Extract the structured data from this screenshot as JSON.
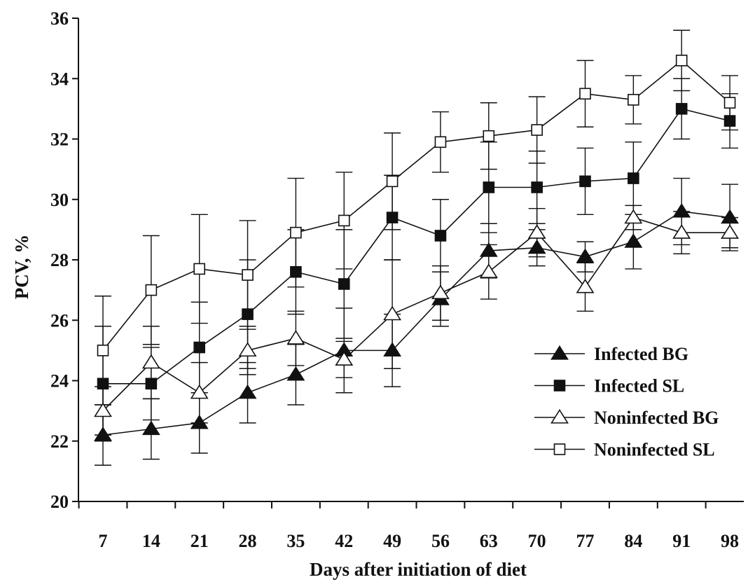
{
  "chart_data": {
    "type": "line",
    "xlabel": "Days after initiation of diet",
    "ylabel": "PCV, %",
    "ylim": [
      20,
      36
    ],
    "y_ticks": [
      20,
      22,
      24,
      26,
      28,
      30,
      32,
      34,
      36
    ],
    "categories": [
      "7",
      "14",
      "21",
      "28",
      "35",
      "42",
      "49",
      "56",
      "63",
      "70",
      "77",
      "84",
      "91",
      "98"
    ],
    "x": [
      7,
      14,
      21,
      28,
      35,
      42,
      49,
      56,
      63,
      70,
      77,
      84,
      91,
      98
    ],
    "legend_position": "bottom-right",
    "grid": false,
    "series": [
      {
        "name": "Infected BG",
        "marker": "filled-triangle",
        "values": [
          22.2,
          22.4,
          22.6,
          23.6,
          24.2,
          25.0,
          25.0,
          26.7,
          28.3,
          28.4,
          28.1,
          28.6,
          29.6,
          29.4
        ],
        "errors": [
          1.0,
          1.0,
          1.0,
          1.0,
          1.0,
          1.4,
          1.2,
          0.9,
          0.9,
          0.6,
          0.5,
          0.9,
          1.1,
          1.1
        ]
      },
      {
        "name": "Infected SL",
        "marker": "filled-square",
        "values": [
          23.9,
          23.9,
          25.1,
          26.2,
          27.6,
          27.2,
          29.4,
          28.8,
          30.4,
          30.4,
          30.6,
          30.7,
          33.0,
          32.6
        ],
        "errors": [
          1.9,
          1.2,
          1.5,
          1.8,
          1.4,
          1.8,
          1.4,
          1.2,
          1.5,
          1.2,
          1.1,
          1.2,
          1.0,
          0.9
        ]
      },
      {
        "name": "Noninfected BG",
        "marker": "open-triangle",
        "values": [
          23.0,
          24.6,
          23.6,
          25.0,
          25.4,
          24.7,
          26.2,
          26.9,
          27.6,
          28.9,
          27.1,
          29.4,
          28.9,
          28.9
        ],
        "errors": [
          0.8,
          1.2,
          1.0,
          0.8,
          0.9,
          0.6,
          1.8,
          0.9,
          0.9,
          0.8,
          0.8,
          0.4,
          0.7,
          0.5
        ]
      },
      {
        "name": "Noninfected SL",
        "marker": "open-square",
        "values": [
          25.0,
          27.0,
          27.7,
          27.5,
          28.9,
          29.3,
          30.6,
          31.9,
          32.1,
          32.3,
          33.5,
          33.3,
          34.6,
          33.2
        ],
        "errors": [
          1.8,
          1.8,
          1.8,
          1.8,
          1.8,
          1.6,
          1.6,
          1.0,
          1.1,
          1.1,
          1.1,
          0.8,
          1.0,
          0.9
        ]
      }
    ]
  }
}
